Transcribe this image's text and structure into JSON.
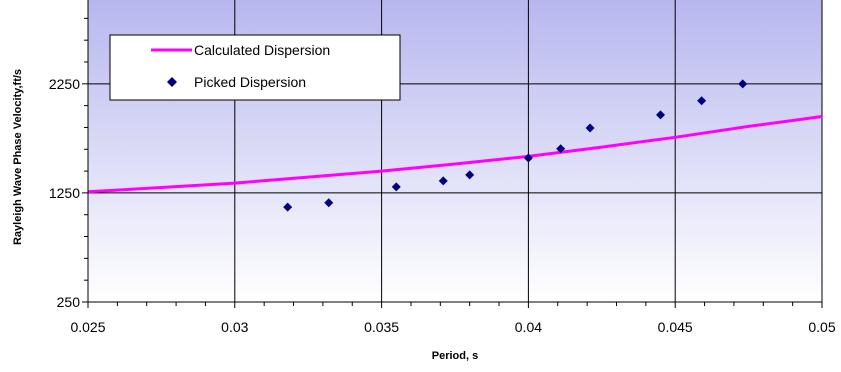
{
  "chart_data": {
    "type": "scatter",
    "xlabel": "Period, s",
    "ylabel": "Rayleigh Wave Phase Velocity,ft/s",
    "xlim": [
      0.025,
      0.05
    ],
    "ylim": [
      250,
      3000
    ],
    "x_ticks": [
      "0.025",
      "0.03",
      "0.035",
      "0.04",
      "0.045",
      "0.05"
    ],
    "x_tick_values": [
      0.025,
      0.03,
      0.035,
      0.04,
      0.045,
      0.05
    ],
    "y_ticks": [
      "250",
      "1250",
      "2250"
    ],
    "y_tick_values": [
      250,
      1250,
      2250
    ],
    "x_minor_step": 0.001,
    "y_minor_step": 200,
    "grid": true,
    "legend": "top-left",
    "series": [
      {
        "name": "Calculated Dispersion",
        "type": "line",
        "color": "#ff00ff",
        "x": [
          0.025,
          0.0275,
          0.03,
          0.0325,
          0.035,
          0.0375,
          0.04,
          0.0425,
          0.045,
          0.0475,
          0.05
        ],
        "y": [
          1260,
          1300,
          1340,
          1395,
          1450,
          1515,
          1585,
          1670,
          1760,
          1860,
          1950
        ]
      },
      {
        "name": "Picked Dispersion",
        "type": "scatter",
        "marker": "diamond",
        "color": "#000080",
        "x": [
          0.0318,
          0.0332,
          0.0355,
          0.0371,
          0.038,
          0.04,
          0.0411,
          0.0421,
          0.0445,
          0.0459,
          0.0473
        ],
        "y": [
          1120,
          1160,
          1305,
          1360,
          1415,
          1570,
          1655,
          1845,
          1965,
          2095,
          2250
        ]
      }
    ]
  },
  "colors": {
    "plot_top": "#b7b7ef",
    "plot_bottom": "#ffffff",
    "gridline": "#000000",
    "axis": "#000000"
  }
}
